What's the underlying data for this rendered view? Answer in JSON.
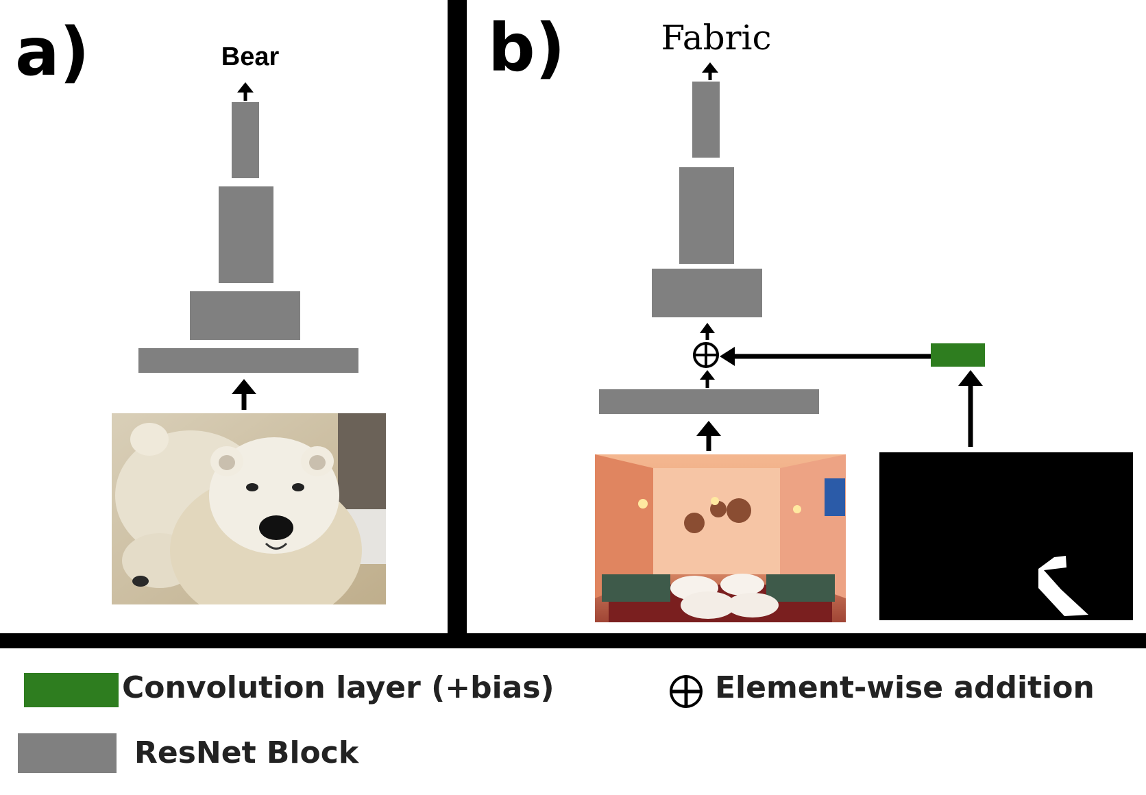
{
  "panel_a": {
    "label": "a)",
    "output": "Bear",
    "image": "polar-bear-photo"
  },
  "panel_b": {
    "label": "b)",
    "output": "Fabric",
    "image": "restaurant-interior-photo",
    "mask_image": "segmentation-mask",
    "operator_icon": "plus-circle-icon"
  },
  "legend": {
    "conv_label": "Convolution layer (+bias)",
    "conv_color": "#2e7d1f",
    "add_label": "Element-wise addition",
    "add_icon": "plus-circle-icon",
    "resnet_label": "ResNet Block",
    "resnet_color": "#808080"
  }
}
